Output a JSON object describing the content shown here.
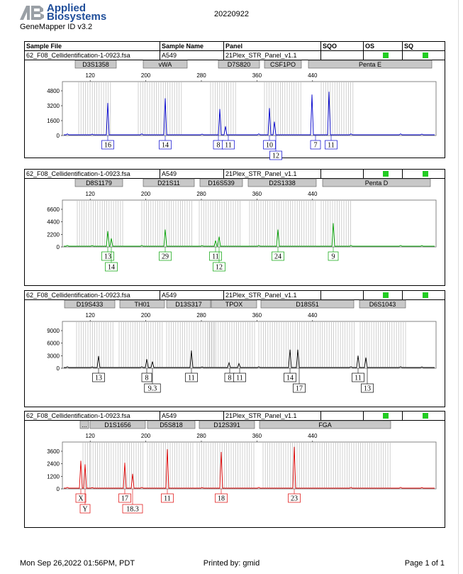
{
  "header": {
    "logo_line1": "Applied",
    "logo_line2": "Biosystems",
    "app_name": "GeneMapper ID v3.2",
    "run_date": "20220922"
  },
  "columns": {
    "sample_file": "Sample File",
    "sample_name": "Sample Name",
    "panel": "Panel",
    "sqo": "SQO",
    "os": "OS",
    "sq": "SQ"
  },
  "x_ticks": [
    "120",
    "200",
    "280",
    "360",
    "440"
  ],
  "colors": {
    "blue": "#0000cc",
    "green": "#00a000",
    "black": "#000000",
    "red": "#dd0000",
    "ok": "#22cc22",
    "locus_fill": "#c8c8c8"
  },
  "panels": [
    {
      "sample_file": "62_F08_Cellidentification-1-0923.fsa",
      "sample_name": "A549",
      "panel_name": "21Plex_STR_Panel_v1.1",
      "show_column_headers": true,
      "color": "blue",
      "loci": [
        "D3S1358",
        "vWA",
        "D7S820",
        "CSF1PO",
        "Penta E"
      ],
      "y_ticks": [
        "4800",
        "3200",
        "1600",
        "0"
      ],
      "alleles": [
        "16",
        "14",
        "8",
        "11",
        "10",
        "12",
        "7",
        "11"
      ]
    },
    {
      "sample_file": "62_F08_Cellidentification-1-0923.fsa",
      "sample_name": "A549",
      "panel_name": "21Plex_STR_Panel_v1.1",
      "show_column_headers": false,
      "color": "green",
      "loci": [
        "D8S1179",
        "D21S11",
        "D16S539",
        "D2S1338",
        "Penta D"
      ],
      "y_ticks": [
        "6600",
        "4400",
        "2200",
        "0"
      ],
      "alleles": [
        "13",
        "14",
        "29",
        "11",
        "12",
        "24",
        "9"
      ]
    },
    {
      "sample_file": "62_F08_Cellidentification-1-0923.fsa",
      "sample_name": "A549",
      "panel_name": "21Plex_STR_Panel_v1.1",
      "show_column_headers": false,
      "color": "black",
      "loci": [
        "D19S433",
        "TH01",
        "D13S317",
        "TPOX",
        "D18S51",
        "D6S1043"
      ],
      "y_ticks": [
        "9000",
        "6000",
        "3000",
        "0"
      ],
      "alleles": [
        "13",
        "8",
        "9.3",
        "11",
        "8",
        "11",
        "14",
        "17",
        "11",
        "13"
      ]
    },
    {
      "sample_file": "62_F08_Cellidentification-1-0923.fsa",
      "sample_name": "A549",
      "panel_name": "21Plex_STR_Panel_v1.1",
      "show_column_headers": false,
      "color": "red",
      "loci": [
        "...",
        "D1S1656",
        "D5S818",
        "D12S391",
        "FGA"
      ],
      "y_ticks": [
        "3600",
        "2400",
        "1200",
        "0"
      ],
      "alleles": [
        "X",
        "Y",
        "17",
        "18.3",
        "11",
        "18",
        "23"
      ]
    }
  ],
  "footer": {
    "printed_at": "Mon Sep 26,2022 01:56PM, PDT",
    "printed_by": "Printed by: gmid",
    "page": "Page 1 of 1"
  }
}
